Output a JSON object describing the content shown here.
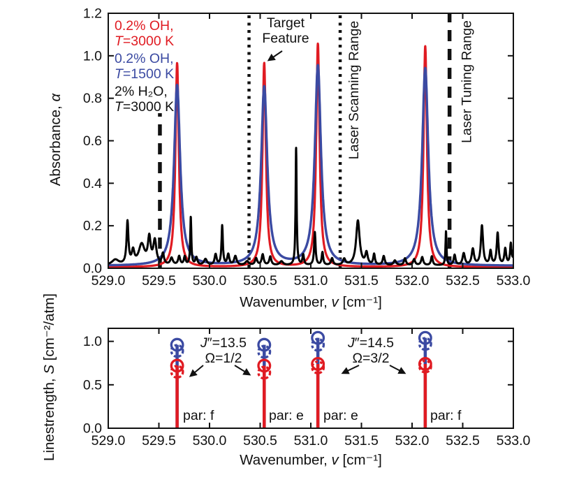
{
  "figure": {
    "legend": {
      "red_line1": "0.2% OH,",
      "red_sym": "T",
      "red_line2": "=3000 K",
      "blue_line1": "0.2% OH,",
      "blue_sym": "T",
      "blue_line2": "=1500 K",
      "black_line1": "2% H₂O,",
      "black_sym": "T",
      "black_line2": "=3000 K"
    },
    "annotations": {
      "target_line1": "Target",
      "target_line2": "Feature",
      "laser_scanning": "Laser Scanning Range",
      "laser_tuning": "Laser Tuning Range",
      "j1_sym": "J",
      "j1_rest": "″=13.5",
      "omega1": "Ω=1/2",
      "j2_sym": "J",
      "j2_rest": "″=14.5",
      "omega2": "Ω=3/2",
      "par1": "par: f",
      "par2": "par: e",
      "par3": "par: e",
      "par4": "par: f"
    },
    "axes": {
      "top": {
        "ylabel_pre": "Absorbance, ",
        "ylabel_sym": "α",
        "xlabel_pre": "Wavenumber, ",
        "xlabel_sym": "v",
        "xlabel_post": " [cm⁻¹]"
      },
      "bottom": {
        "ylabel_pre": "Linestrength, ",
        "ylabel_sym": "S",
        "ylabel_post": " [cm⁻²/atm]",
        "xlabel_pre": "Wavenumber, ",
        "xlabel_sym": "v",
        "xlabel_post": " [cm⁻¹]"
      }
    },
    "colors": {
      "red": "#e01b22",
      "blue": "#3b4aa2",
      "black": "#000000",
      "axis": "#111111"
    }
  },
  "chart_data": [
    {
      "type": "line",
      "panel": "top",
      "title": "",
      "xlabel": "Wavenumber, v [cm⁻¹]",
      "ylabel": "Absorbance, α",
      "xlim": [
        529.0,
        533.0
      ],
      "ylim": [
        0.0,
        1.2
      ],
      "xticks": [
        "529.0",
        "529.5",
        "530.0",
        "530.5",
        "531.0",
        "531.5",
        "532.0",
        "532.5",
        "533.0"
      ],
      "yticks": [
        "0.0",
        "0.2",
        "0.4",
        "0.6",
        "0.8",
        "1.0",
        "1.2"
      ],
      "grid": false,
      "legend_position": "upper-left-inside",
      "series": [
        {
          "name": "0.2% OH, T=3000 K",
          "color_key": "red",
          "shape": "lorentzian",
          "hwhm": 0.02,
          "baseline": 0.005,
          "peaks": [
            [
              529.68,
              0.96
            ],
            [
              530.54,
              0.96
            ],
            [
              531.07,
              1.05
            ],
            [
              532.13,
              1.04
            ]
          ]
        },
        {
          "name": "0.2% OH, T=1500 K",
          "color_key": "blue",
          "shape": "lorentzian",
          "hwhm": 0.036,
          "baseline": 0.011,
          "peaks": [
            [
              529.68,
              0.85
            ],
            [
              530.54,
              0.84
            ],
            [
              531.07,
              0.94
            ],
            [
              532.13,
              0.93
            ]
          ]
        },
        {
          "name": "2% H₂O, T=3000 K",
          "color_key": "black",
          "shape": "lorentzian",
          "baseline": 0.013,
          "peaks": [
            [
              529.07,
              0.025,
              0.04
            ],
            [
              529.19,
              0.2,
              0.011
            ],
            [
              529.245,
              0.06,
              0.015
            ],
            [
              529.33,
              0.095,
              0.035
            ],
            [
              529.405,
              0.12,
              0.016
            ],
            [
              529.46,
              0.11,
              0.018
            ],
            [
              529.54,
              0.05,
              0.012
            ],
            [
              529.625,
              0.032,
              0.015
            ],
            [
              529.7,
              0.04,
              0.012
            ],
            [
              529.755,
              0.038,
              0.01
            ],
            [
              529.815,
              0.225,
              0.0065
            ],
            [
              529.87,
              0.035,
              0.012
            ],
            [
              529.96,
              0.028,
              0.018
            ],
            [
              530.06,
              0.05,
              0.012
            ],
            [
              530.125,
              0.185,
              0.008
            ],
            [
              530.185,
              0.05,
              0.012
            ],
            [
              530.255,
              0.042,
              0.015
            ],
            [
              530.37,
              0.018,
              0.02
            ],
            [
              530.46,
              0.032,
              0.013
            ],
            [
              530.525,
              0.05,
              0.012
            ],
            [
              530.6,
              0.04,
              0.012
            ],
            [
              530.71,
              0.018,
              0.02
            ],
            [
              530.855,
              0.555,
              0.0062
            ],
            [
              530.925,
              0.048,
              0.009
            ],
            [
              531.04,
              0.155,
              0.0085
            ],
            [
              531.115,
              0.06,
              0.009
            ],
            [
              531.21,
              0.032,
              0.012
            ],
            [
              531.33,
              0.028,
              0.015
            ],
            [
              531.465,
              0.21,
              0.021
            ],
            [
              531.55,
              0.055,
              0.014
            ],
            [
              531.625,
              0.05,
              0.01
            ],
            [
              531.72,
              0.042,
              0.012
            ],
            [
              531.83,
              0.022,
              0.015
            ],
            [
              531.93,
              0.032,
              0.012
            ],
            [
              532.02,
              0.028,
              0.012
            ],
            [
              532.1,
              0.038,
              0.012
            ],
            [
              532.195,
              0.042,
              0.01
            ],
            [
              532.335,
              0.16,
              0.0058
            ],
            [
              532.42,
              0.048,
              0.011
            ],
            [
              532.51,
              0.055,
              0.014
            ],
            [
              532.6,
              0.075,
              0.014
            ],
            [
              532.69,
              0.185,
              0.013
            ],
            [
              532.775,
              0.065,
              0.011
            ],
            [
              532.845,
              0.15,
              0.011
            ],
            [
              532.92,
              0.075,
              0.011
            ],
            [
              532.975,
              0.095,
              0.009
            ],
            [
              533.02,
              0.08,
              0.015
            ]
          ]
        }
      ],
      "vlines": [
        {
          "x": 529.51,
          "style": "dashed",
          "ymin": 0.0,
          "ymax": 0.73,
          "label": "Laser Tuning Range"
        },
        {
          "x": 532.37,
          "style": "dashed",
          "ymin": 0.0,
          "ymax": 1.2,
          "label": "Laser Tuning Range"
        },
        {
          "x": 530.39,
          "style": "dotted",
          "ymin": 0.0,
          "ymax": 1.2,
          "label": "Laser Scanning Range"
        },
        {
          "x": 531.29,
          "style": "dotted",
          "ymin": 0.0,
          "ymax": 1.2,
          "label": "Laser Scanning Range"
        }
      ],
      "annotations": [
        {
          "text": "Target Feature",
          "points_to_x": 530.54
        }
      ]
    },
    {
      "type": "stem",
      "panel": "bottom",
      "title": "",
      "xlabel": "Wavenumber, v [cm⁻¹]",
      "ylabel": "Linestrength, S [cm⁻²/atm]",
      "xlim": [
        529.0,
        533.0
      ],
      "ylim": [
        0.0,
        1.15
      ],
      "xticks": [
        "529.0",
        "529.5",
        "530.0",
        "530.5",
        "531.0",
        "531.5",
        "532.0",
        "532.5",
        "533.0"
      ],
      "yticks": [
        "0.0",
        "0.5",
        "1.0"
      ],
      "grid": false,
      "stems": [
        {
          "x": 529.68,
          "parity": "f",
          "blue_solid": 0.96,
          "blue_dashed": 0.89,
          "red_solid": 0.72,
          "red_dashed": 0.65
        },
        {
          "x": 530.54,
          "parity": "e",
          "blue_solid": 0.96,
          "blue_dashed": 0.88,
          "red_solid": 0.72,
          "red_dashed": 0.64
        },
        {
          "x": 531.07,
          "parity": "e",
          "blue_solid": 1.04,
          "blue_dashed": 0.96,
          "red_solid": 0.74,
          "red_dashed": 0.7
        },
        {
          "x": 532.13,
          "parity": "f",
          "blue_solid": 1.04,
          "blue_dashed": 0.97,
          "red_solid": 0.74,
          "red_dashed": 0.71
        }
      ],
      "annotations": [
        {
          "text": "J″=13.5, Ω=1/2",
          "points_to_x": [
            529.68,
            530.54
          ]
        },
        {
          "text": "J″=14.5, Ω=3/2",
          "points_to_x": [
            531.07,
            532.13
          ]
        }
      ]
    }
  ]
}
